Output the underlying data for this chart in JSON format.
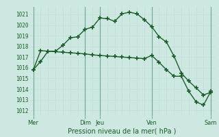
{
  "bg_color": "#cce8e0",
  "grid_major_color": "#aacccc",
  "grid_minor_color": "#c0ddd8",
  "line_color": "#1a5c28",
  "ylabel_values": [
    1012,
    1013,
    1014,
    1015,
    1016,
    1017,
    1018,
    1019,
    1020,
    1021
  ],
  "ylim": [
    1011.5,
    1021.7
  ],
  "xlabel": "Pression niveau de la mer( hPa )",
  "curve1_x": [
    0,
    1,
    2,
    3,
    4,
    5,
    6,
    7,
    8,
    9,
    10,
    11,
    12,
    13,
    14,
    15,
    16,
    17,
    18,
    19,
    20,
    21,
    22,
    23,
    24
  ],
  "curve1_y": [
    1015.8,
    1016.6,
    1017.55,
    1017.55,
    1018.1,
    1018.8,
    1018.9,
    1019.6,
    1019.8,
    1020.65,
    1020.6,
    1020.35,
    1021.05,
    1021.2,
    1021.05,
    1020.5,
    1019.85,
    1018.9,
    1018.4,
    1017.1,
    1015.5,
    1014.75,
    1014.1,
    1013.45,
    1013.7
  ],
  "curve2_x": [
    0,
    1,
    2,
    3,
    4,
    5,
    6,
    7,
    8,
    9,
    10,
    11,
    12,
    13,
    14,
    15,
    16,
    17,
    18,
    19,
    20,
    21,
    22,
    23,
    24
  ],
  "curve2_y": [
    1015.8,
    1017.6,
    1017.55,
    1017.5,
    1017.45,
    1017.4,
    1017.35,
    1017.3,
    1017.2,
    1017.15,
    1017.1,
    1017.05,
    1017.0,
    1016.95,
    1016.9,
    1016.85,
    1017.15,
    1016.5,
    1015.8,
    1015.2,
    1015.2,
    1013.8,
    1012.8,
    1012.5,
    1013.8
  ],
  "day_vlines": [
    0,
    7,
    9,
    16,
    24
  ],
  "xtick_pos": [
    0,
    7,
    9,
    16,
    24
  ],
  "xtick_labels": [
    "Mer",
    "Dim",
    "Jeu",
    "Ven",
    "Sam"
  ]
}
